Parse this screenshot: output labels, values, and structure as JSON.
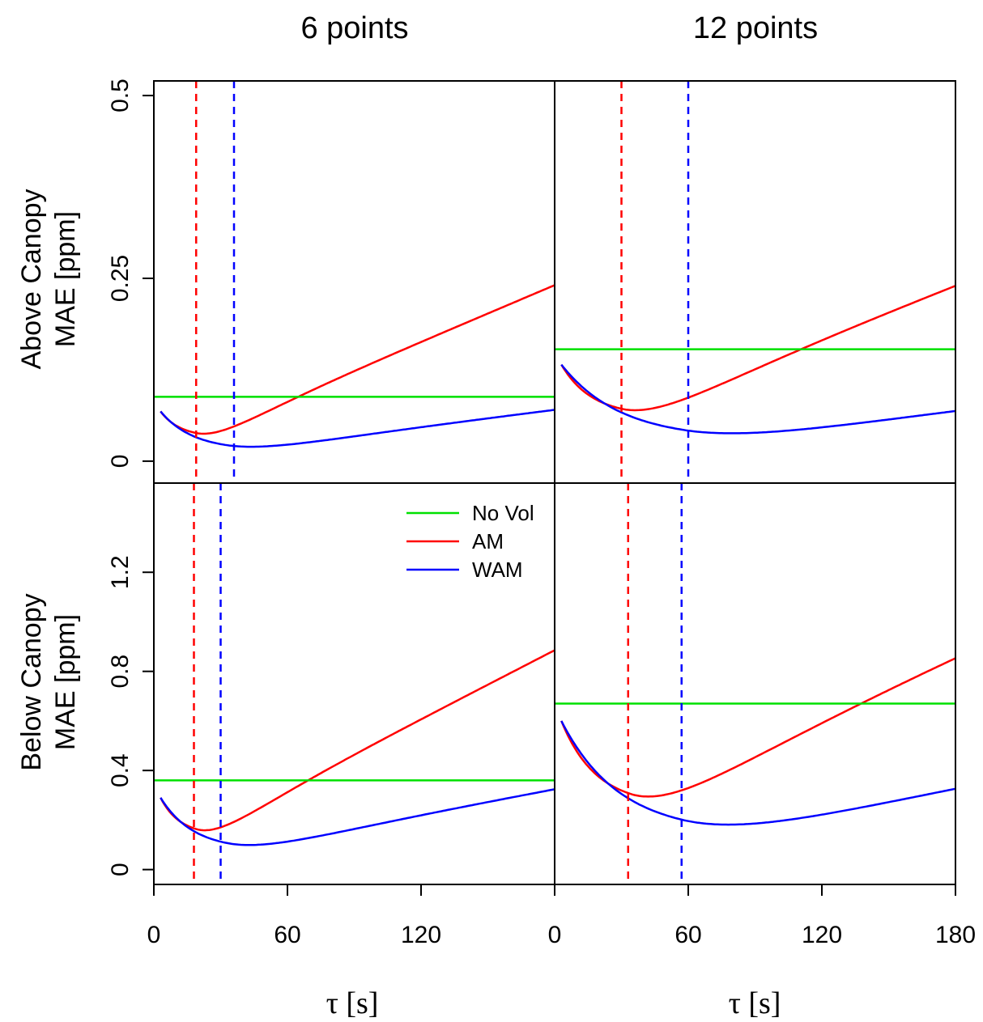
{
  "colors": {
    "no_vol": "#00e000",
    "am": "#ff0000",
    "wam": "#0000ff"
  },
  "titles": [
    "6 points",
    "12 points"
  ],
  "ylabels": [
    [
      "Above Canopy",
      "MAE [ppm]"
    ],
    [
      "Below Canopy",
      "MAE [ppm]"
    ]
  ],
  "xlabel": "τ [s]",
  "legend": {
    "placement": "top-right of bottom-left panel",
    "items": [
      {
        "key": "no_vol",
        "label": "No Vol"
      },
      {
        "key": "am",
        "label": "AM"
      },
      {
        "key": "wam",
        "label": "WAM"
      }
    ]
  },
  "chart_data": [
    {
      "type": "line",
      "row": 0,
      "col": 0,
      "xlim": [
        0,
        180
      ],
      "ylim": [
        -0.03,
        0.52
      ],
      "xticks": [],
      "yticks": [
        0,
        0.25,
        0.5
      ],
      "ytick_labels": [
        "0",
        "0.25",
        "0.5"
      ],
      "novol": 0.088,
      "am": {
        "vmin": 0.033,
        "tmin": 19,
        "slope": 0.00129,
        "y0": 0.068
      },
      "wam": {
        "vmin": 0.015,
        "tmin": 32,
        "slope": 0.000375,
        "y0": 0.068
      },
      "vlines": {
        "am": 19,
        "wam": 36
      }
    },
    {
      "type": "line",
      "row": 0,
      "col": 1,
      "xlim": [
        0,
        180
      ],
      "ylim": [
        -0.03,
        0.52
      ],
      "xticks": [],
      "yticks": [],
      "novol": 0.153,
      "am": {
        "vmin": 0.062,
        "tmin": 30,
        "slope": 0.00119,
        "y0": 0.132
      },
      "wam": {
        "vmin": 0.03,
        "tmin": 58,
        "slope": 0.00035,
        "y0": 0.132
      },
      "vlines": {
        "am": 30,
        "wam": 60
      }
    },
    {
      "type": "line",
      "row": 1,
      "col": 0,
      "xlim": [
        0,
        180
      ],
      "ylim": [
        -0.06,
        1.56
      ],
      "xticks": [
        0,
        60,
        120
      ],
      "xtick_labels": [
        "0",
        "60",
        "120"
      ],
      "yticks": [
        0,
        0.4,
        0.8,
        1.2
      ],
      "ytick_labels": [
        "0",
        "0.4",
        "0.8",
        "1.2"
      ],
      "novol": 0.36,
      "am": {
        "vmin": 0.14,
        "tmin": 19,
        "slope": 0.00463,
        "y0": 0.29
      },
      "wam": {
        "vmin": 0.08,
        "tmin": 32,
        "slope": 0.00166,
        "y0": 0.29
      },
      "vlines": {
        "am": 18,
        "wam": 30
      }
    },
    {
      "type": "line",
      "row": 1,
      "col": 1,
      "xlim": [
        0,
        180
      ],
      "ylim": [
        -0.06,
        1.56
      ],
      "xticks": [
        0,
        60,
        120,
        180
      ],
      "xtick_labels": [
        "0",
        "60",
        "120",
        "180"
      ],
      "yticks": [],
      "novol": 0.67,
      "am": {
        "vmin": 0.26,
        "tmin": 34,
        "slope": 0.0041,
        "y0": 0.6
      },
      "wam": {
        "vmin": 0.145,
        "tmin": 57,
        "slope": 0.00162,
        "y0": 0.6
      },
      "vlines": {
        "am": 33,
        "wam": 57
      }
    }
  ]
}
